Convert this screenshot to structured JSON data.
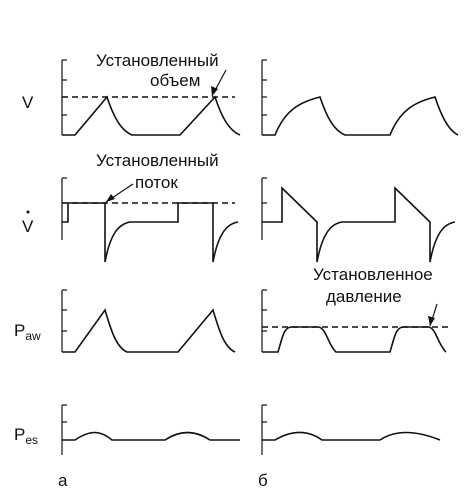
{
  "labels": {
    "volume": "V",
    "flow": "V",
    "paw": {
      "main": "P",
      "sub": "aw"
    },
    "pes": {
      "main": "P",
      "sub": "es"
    }
  },
  "annotations": {
    "set_volume": [
      "Установленный",
      "объем"
    ],
    "set_flow": [
      "Установленный",
      "поток"
    ],
    "set_pressure": [
      "Установленное",
      "давление"
    ]
  },
  "panels": [
    "а",
    "б"
  ]
}
